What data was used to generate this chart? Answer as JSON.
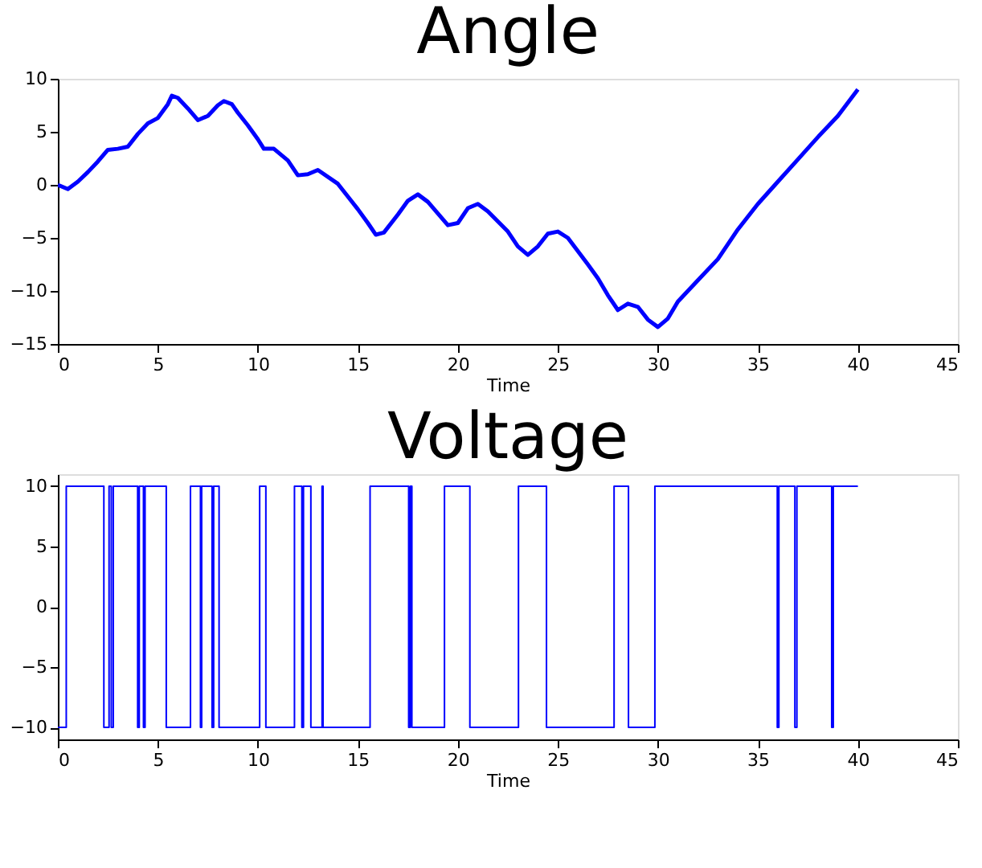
{
  "chart_data": [
    {
      "type": "line",
      "title": "Angle",
      "xlabel": "Time",
      "xlim": [
        0,
        45
      ],
      "xticks": [
        0,
        5,
        10,
        15,
        20,
        25,
        30,
        35,
        40,
        45
      ],
      "ylim": [
        -15,
        10
      ],
      "yticks": [
        -15,
        -10,
        -5,
        0,
        5,
        10
      ],
      "grid": false,
      "x": [
        0,
        0.5,
        1,
        1.5,
        2,
        2.5,
        3,
        3.5,
        4,
        4.5,
        5,
        5.5,
        5.7,
        6,
        6.5,
        7,
        7.5,
        8,
        8.3,
        8.7,
        9,
        9.5,
        10,
        10.3,
        10.8,
        11.5,
        12,
        12.5,
        13,
        14,
        15,
        15.5,
        15.9,
        16.3,
        17,
        17.5,
        18,
        18.5,
        19.5,
        20,
        20.5,
        21,
        21.5,
        22.5,
        23,
        23.5,
        24,
        24.5,
        25,
        25.5,
        26.5,
        27,
        27.5,
        28,
        28.5,
        29,
        29.5,
        30,
        30.5,
        31,
        32,
        33,
        34,
        35,
        36,
        37,
        38,
        39,
        40
      ],
      "series": [
        {
          "color": "#0000ff",
          "values": [
            0,
            -0.4,
            0.3,
            1.2,
            2.2,
            3.3,
            3.4,
            3.6,
            4.8,
            5.8,
            6.3,
            7.6,
            8.4,
            8.2,
            7.2,
            6.1,
            6.5,
            7.5,
            7.9,
            7.6,
            6.8,
            5.6,
            4.3,
            3.4,
            3.4,
            2.3,
            0.9,
            1.0,
            1.4,
            0.1,
            -2.3,
            -3.6,
            -4.7,
            -4.5,
            -2.8,
            -1.5,
            -0.9,
            -1.6,
            -3.8,
            -3.6,
            -2.2,
            -1.8,
            -2.5,
            -4.4,
            -5.8,
            -6.6,
            -5.8,
            -4.6,
            -4.4,
            -5.0,
            -7.5,
            -8.8,
            -10.4,
            -11.8,
            -11.2,
            -11.5,
            -12.7,
            -13.4,
            -12.6,
            -11.0,
            -9.0,
            -7.0,
            -4.2,
            -1.8,
            0.3,
            2.4,
            4.5,
            6.5,
            9.0
          ]
        }
      ]
    },
    {
      "type": "step",
      "title": "Voltage",
      "xlabel": "Time",
      "xlim": [
        0,
        45
      ],
      "xticks": [
        0,
        5,
        10,
        15,
        20,
        25,
        30,
        35,
        40,
        45
      ],
      "ylim": [
        -11,
        11
      ],
      "yticks": [
        -10,
        -5,
        0,
        5,
        10
      ],
      "grid": false,
      "x": [
        0,
        0.42,
        2.3,
        2.56,
        2.67,
        2.77,
        3.99,
        4.07,
        4.28,
        4.36,
        5.42,
        6.63,
        7.13,
        7.19,
        7.71,
        7.79,
        8.06,
        10.09,
        10.4,
        11.83,
        12.2,
        12.28,
        12.65,
        13.21,
        13.26,
        15.61,
        17.54,
        17.62,
        17.7,
        19.33,
        20.6,
        23.03,
        24.43,
        27.81,
        28.53,
        29.85,
        35.97,
        36.05,
        36.85,
        36.95,
        38.69,
        38.77,
        40
      ],
      "series": [
        {
          "color": "#0000ff",
          "values": [
            -10,
            10,
            -10,
            10,
            -10,
            10,
            -10,
            10,
            -10,
            10,
            -10,
            10,
            -10,
            10,
            -10,
            10,
            -10,
            10,
            -10,
            10,
            -10,
            10,
            -10,
            10,
            -10,
            10,
            -10,
            10,
            -10,
            10,
            -10,
            10,
            -10,
            10,
            -10,
            10,
            -10,
            10,
            -10,
            10,
            -10,
            10,
            10
          ]
        }
      ]
    }
  ]
}
